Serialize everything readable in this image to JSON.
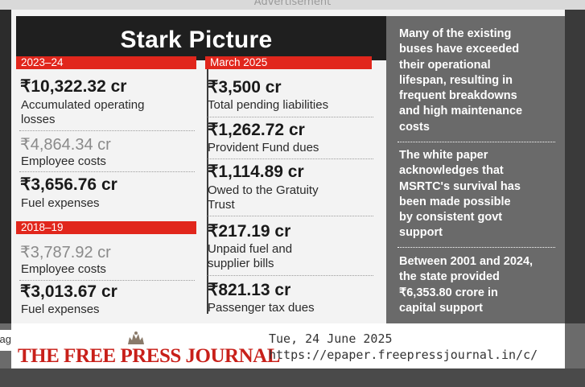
{
  "ad_label": "Advertisement",
  "infographic": {
    "title": "Stark Picture",
    "left": {
      "period1": {
        "header": "2023–24",
        "items": [
          {
            "amount": "₹10,322.32 cr",
            "label_line1": "Accumulated operating",
            "label_line2": "losses"
          },
          {
            "amount": "₹4,864.34 cr",
            "label": "Employee costs"
          },
          {
            "amount": "₹3,656.76 cr",
            "label": "Fuel expenses"
          }
        ]
      },
      "period2": {
        "header": "2018–19",
        "items": [
          {
            "amount": "₹3,787.92 cr",
            "label": "Employee costs"
          },
          {
            "amount": "₹3,013.67 cr",
            "label": "Fuel expenses"
          }
        ]
      }
    },
    "middle": {
      "header": "March 2025",
      "items": [
        {
          "amount": "₹3,500 cr",
          "label": "Total pending liabilities"
        },
        {
          "amount": "₹1,262.72 cr",
          "label": "Provident Fund dues"
        },
        {
          "amount": "₹1,114.89 cr",
          "label_line1": "Owed to the Gratuity",
          "label_line2": "Trust"
        },
        {
          "amount": "₹217.19 cr",
          "label_line1": "Unpaid fuel and",
          "label_line2": "supplier bills"
        },
        {
          "amount": "₹821.13 cr",
          "label": "Passenger tax dues"
        }
      ]
    },
    "sidebar": {
      "notes": [
        {
          "lines": [
            "Many of the existing",
            "buses have exceeded",
            "their operational",
            "lifespan, resulting in",
            "frequent breakdowns",
            "and high maintenance",
            "costs"
          ]
        },
        {
          "lines": [
            "The white paper",
            "acknowledges that",
            "MSRTC's survival has",
            "been made possible",
            "by consistent govt",
            "support"
          ]
        },
        {
          "lines": [
            "Between 2001 and 2024,",
            "the state provided",
            "₹6,353.80 crore in",
            "capital support"
          ]
        }
      ]
    }
  },
  "footer": {
    "edge_text": "ag",
    "logo": "THE FREE PRESS JOURNAL",
    "date": "Tue, 24 June 2025",
    "url": "https://epaper.freepressjournal.in/c/"
  },
  "colors": {
    "accent_red": "#e1261c",
    "title_bg": "#1f1f1f",
    "sidebar_bg": "#6a6a6a",
    "logo_red": "#c8201a"
  }
}
